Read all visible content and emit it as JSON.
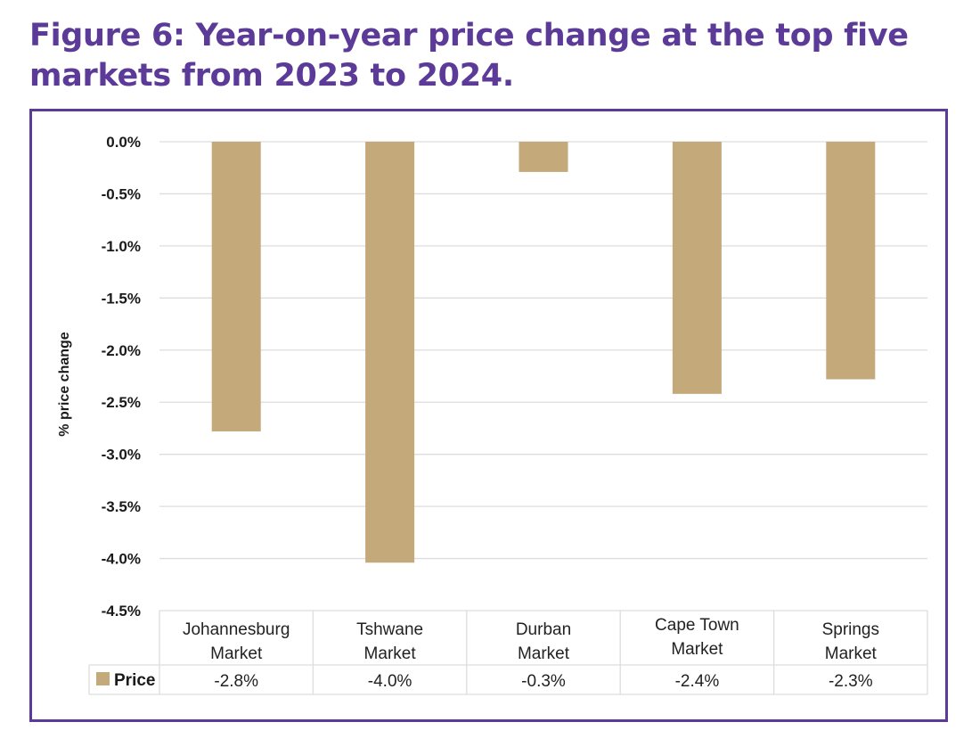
{
  "title": "Figure 6: Year-on-year price change at the top five markets from 2023 to 2024.",
  "title_lines": [
    "Figure 6: Year-on-year price change at the top five",
    "markets from 2023 to 2024."
  ],
  "colors": {
    "accent": "#5b3a98",
    "bar": "#c4a97a",
    "grid": "#dddddd"
  },
  "chart_data": {
    "type": "bar",
    "title": "Figure 6: Year-on-year price change at the top five markets from 2023 to 2024.",
    "xlabel": "",
    "ylabel": "% price change",
    "ylim": [
      -4.5,
      0.0
    ],
    "yticks": [
      0.0,
      -0.5,
      -1.0,
      -1.5,
      -2.0,
      -2.5,
      -3.0,
      -3.5,
      -4.0,
      -4.5
    ],
    "ytick_labels": [
      "0.0%",
      "-0.5%",
      "-1.0%",
      "-1.5%",
      "-2.0%",
      "-2.5%",
      "-3.0%",
      "-3.5%",
      "-4.0%",
      "-4.5%"
    ],
    "grid": true,
    "categories": [
      [
        "Johannesburg",
        "Market"
      ],
      [
        "Tshwane",
        "Market"
      ],
      [
        "Durban",
        "Market"
      ],
      [
        "Cape Town",
        "Market"
      ],
      [
        "Springs",
        "Market"
      ]
    ],
    "series": [
      {
        "name": "Price",
        "values": [
          -2.78,
          -4.04,
          -0.29,
          -2.42,
          -2.28
        ],
        "labels": [
          "-2.8%",
          "-4.0%",
          "-0.3%",
          "-2.4%",
          "-2.3%"
        ]
      }
    ],
    "legend": "data-table-bottom"
  }
}
